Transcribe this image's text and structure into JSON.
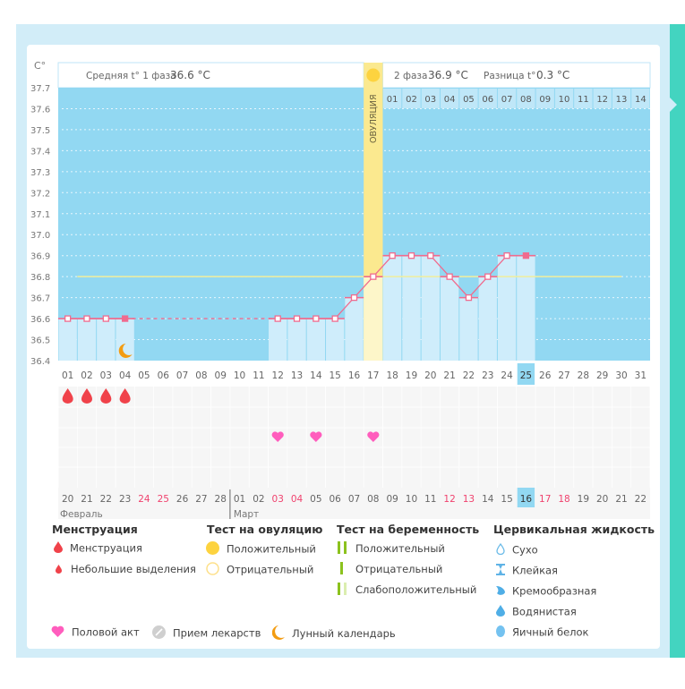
{
  "header": {
    "phase1_label": "Средняя t° 1 фаза",
    "phase1_value": "36.6 °C",
    "phase2_label": "2 фаза",
    "phase2_value": "36.9 °C",
    "diff_label": "Разница t°",
    "diff_value": "0.3 °C",
    "ovulation_label": "ОВУЛЯЦИЯ"
  },
  "chart_data": {
    "type": "line",
    "ylabel": "C°",
    "ylim": [
      36.4,
      37.7
    ],
    "yticks": [
      "37.7",
      "37.6",
      "37.5",
      "37.4",
      "37.3",
      "37.2",
      "37.1",
      "37.0",
      "36.9",
      "36.8",
      "36.7",
      "36.6",
      "36.5",
      "36.4"
    ],
    "x": [
      "01",
      "02",
      "03",
      "04",
      "05",
      "06",
      "07",
      "08",
      "09",
      "10",
      "11",
      "12",
      "13",
      "14",
      "15",
      "16",
      "17",
      "18",
      "19",
      "20",
      "21",
      "22",
      "23",
      "24",
      "25",
      "26",
      "27",
      "28",
      "29",
      "30",
      "31"
    ],
    "series": [
      {
        "name": "Базальная температура",
        "values": [
          36.6,
          36.6,
          36.6,
          36.6,
          null,
          null,
          null,
          null,
          null,
          null,
          null,
          36.6,
          36.6,
          36.6,
          36.6,
          36.7,
          36.8,
          36.9,
          36.9,
          36.9,
          36.8,
          36.7,
          36.8,
          36.9,
          36.9,
          null,
          null,
          null,
          null,
          null,
          null
        ]
      }
    ],
    "coverline": 36.8,
    "ovulation_day": "17",
    "current_day": "25",
    "post_ovulation_days": [
      "01",
      "02",
      "03",
      "04",
      "05",
      "06",
      "07",
      "08",
      "09",
      "10",
      "11",
      "12",
      "13",
      "14"
    ],
    "dates": [
      "20",
      "21",
      "22",
      "23",
      "24",
      "25",
      "26",
      "27",
      "28",
      "01",
      "02",
      "03",
      "04",
      "05",
      "06",
      "07",
      "08",
      "09",
      "10",
      "11",
      "12",
      "13",
      "14",
      "15",
      "16",
      "17",
      "18",
      "19",
      "20",
      "21",
      "22"
    ],
    "weekend_dates_idx": [
      4,
      5,
      11,
      12,
      20,
      21,
      25,
      26
    ],
    "today_date_idx": 24,
    "months": [
      "Февраль",
      "Март"
    ],
    "menstruation_days": [
      "01",
      "02",
      "03",
      "04"
    ],
    "intercourse_days": [
      "12",
      "14",
      "17"
    ],
    "moon_day": "04"
  },
  "legend": {
    "menstruation": {
      "title": "Менструация",
      "items": [
        "Менструация",
        "Небольшие выделения"
      ]
    },
    "ovulation_test": {
      "title": "Тест на овуляцию",
      "items": [
        "Положительный",
        "Отрицательный"
      ]
    },
    "pregnancy_test": {
      "title": "Тест на беременность",
      "items": [
        "Положительный",
        "Отрицательный",
        "Слабоположительный"
      ]
    },
    "cervical": {
      "title": "Цервикальная жидкость",
      "items": [
        "Сухо",
        "Клейкая",
        "Кремообразная",
        "Водянистая",
        "Яичный белок"
      ]
    },
    "bottom": [
      "Половой акт",
      "Прием лекарств",
      "Лунный календарь"
    ]
  },
  "colors": {
    "bg": "#92d8f2",
    "bar": "#cfedfb",
    "line": "#f06b8e",
    "cover": "#f1ee9c",
    "ovul": "#fbe98f",
    "teal": "#43d4c0",
    "drop": "#f0424a",
    "heart": "#ff5dbd",
    "moon": "#f39c12"
  }
}
